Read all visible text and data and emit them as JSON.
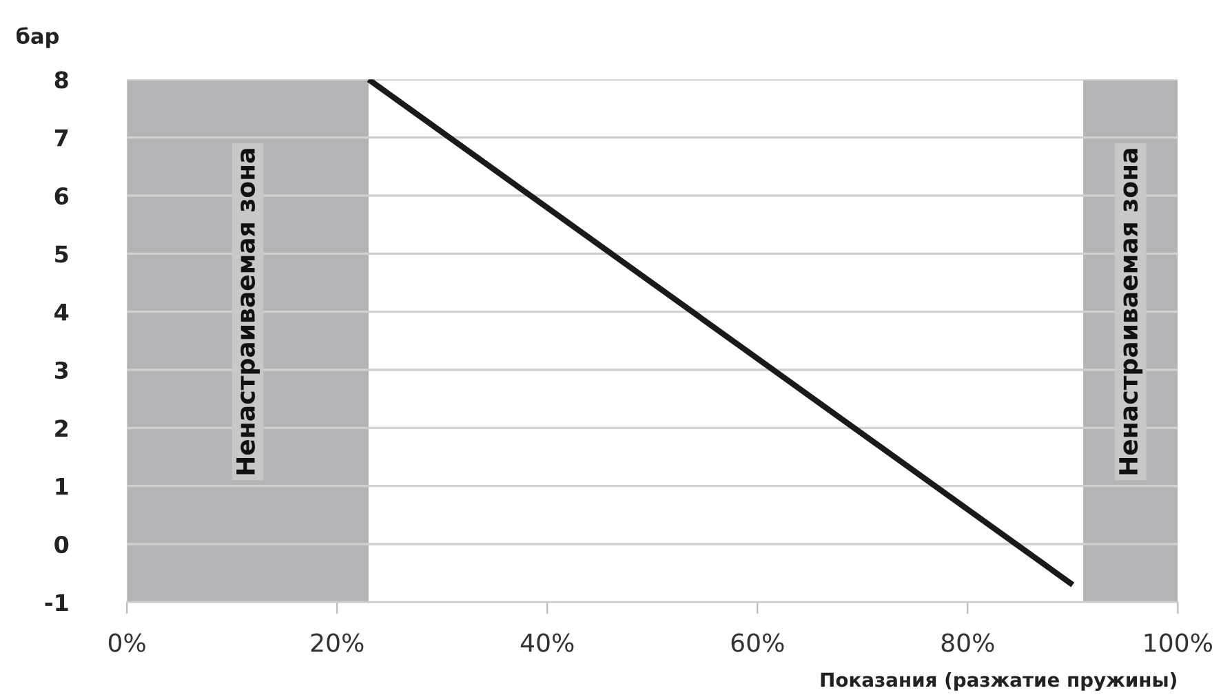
{
  "chart_data": {
    "type": "line",
    "xlabel": "Показания (разжатие пружины)",
    "ylabel": "бар",
    "series": [
      {
        "color": "#1a1a1a",
        "x": [
          23,
          90
        ],
        "values": [
          8,
          -0.7
        ]
      }
    ],
    "xlim": [
      0,
      100
    ],
    "xticks": [
      {
        "value": 0,
        "label": "0%"
      },
      {
        "value": 20,
        "label": "20%"
      },
      {
        "value": 40,
        "label": "40%"
      },
      {
        "value": 60,
        "label": "60%"
      },
      {
        "value": 80,
        "label": "80%"
      },
      {
        "value": 100,
        "label": "100%"
      }
    ],
    "ylim": [
      -1,
      8
    ],
    "yticks": [
      -1,
      0,
      1,
      2,
      3,
      4,
      5,
      6,
      7,
      8
    ],
    "grid": "y",
    "marker": "none",
    "line_style": "solid",
    "bands": [
      {
        "axis": "x",
        "from": 0,
        "to": 23,
        "label": "Ненастраиваемая зона",
        "color": "#b4b4b6"
      },
      {
        "axis": "x",
        "from": 91,
        "to": 100,
        "label": "Ненастраиваемая зона",
        "color": "#b4b4b6"
      }
    ]
  }
}
